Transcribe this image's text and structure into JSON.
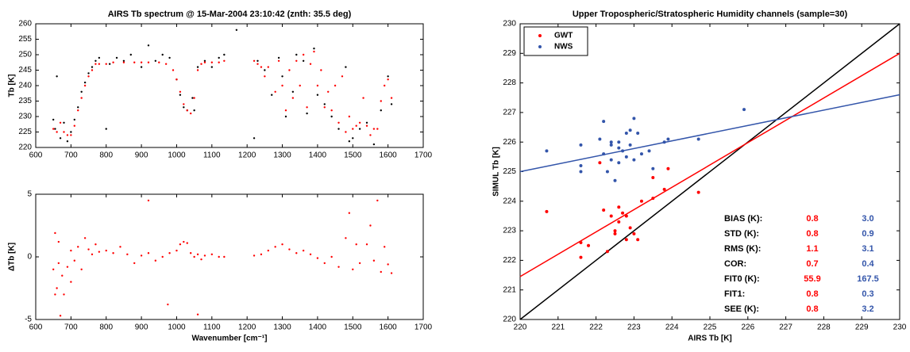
{
  "chart_data": [
    {
      "type": "scatter",
      "title": "AIRS Tb spectrum @ 15-Mar-2004 23:10:42 (znth: 35.5 deg)",
      "y_label": "Tb [K]",
      "xlim": [
        600,
        1700
      ],
      "xticks": [
        600,
        700,
        800,
        900,
        1000,
        1100,
        1200,
        1300,
        1400,
        1500,
        1600,
        1700
      ],
      "ylim": [
        220,
        260
      ],
      "yticks": [
        220,
        225,
        230,
        235,
        240,
        245,
        250,
        255,
        260
      ],
      "series": [
        {
          "color": "#000000",
          "x": [
            650,
            655,
            660,
            670,
            680,
            690,
            700,
            710,
            720,
            730,
            740,
            750,
            760,
            770,
            780,
            800,
            810,
            830,
            850,
            870,
            900,
            920,
            940,
            960,
            980,
            1000,
            1010,
            1020,
            1030,
            1045,
            1050,
            1060,
            1080,
            1100,
            1120,
            1135,
            1170,
            1220,
            1230,
            1250,
            1270,
            1290,
            1300,
            1310,
            1330,
            1340,
            1360,
            1370,
            1390,
            1400,
            1420,
            1440,
            1460,
            1480,
            1490,
            1500,
            1520,
            1540,
            1560,
            1580,
            1600,
            1610
          ],
          "values": [
            229,
            226,
            243,
            223,
            228,
            222,
            225,
            229,
            233,
            238,
            241,
            244,
            246,
            248,
            249,
            226,
            247,
            249,
            248,
            250,
            246,
            253,
            248,
            250,
            249,
            242,
            237,
            233,
            232,
            236,
            232,
            246,
            248,
            246,
            249,
            250,
            258,
            223,
            248,
            245,
            237,
            249,
            243,
            230,
            238,
            250,
            248,
            231,
            252,
            237,
            234,
            230,
            226,
            246,
            222,
            223,
            226,
            228,
            221,
            232,
            243,
            234
          ]
        },
        {
          "color": "#ff0000",
          "x": [
            650,
            660,
            670,
            680,
            690,
            700,
            710,
            720,
            730,
            740,
            750,
            760,
            770,
            780,
            800,
            820,
            850,
            880,
            900,
            920,
            950,
            970,
            990,
            1000,
            1010,
            1020,
            1030,
            1040,
            1050,
            1060,
            1070,
            1080,
            1100,
            1120,
            1135,
            1220,
            1230,
            1240,
            1250,
            1260,
            1280,
            1290,
            1300,
            1310,
            1320,
            1330,
            1340,
            1350,
            1360,
            1370,
            1380,
            1390,
            1400,
            1410,
            1420,
            1430,
            1440,
            1450,
            1460,
            1470,
            1480,
            1490,
            1500,
            1510,
            1520,
            1530,
            1540,
            1550,
            1560,
            1570,
            1580,
            1590,
            1600,
            1610
          ],
          "values": [
            226,
            225,
            228,
            225,
            224,
            224,
            227,
            232,
            236,
            240,
            243,
            245,
            247,
            247,
            247,
            247.5,
            247.5,
            247.5,
            247.5,
            247.5,
            247.5,
            247,
            245,
            242,
            238,
            234,
            232,
            231,
            236,
            245,
            247,
            247.5,
            247.5,
            247.5,
            248,
            248,
            247,
            246,
            243,
            246,
            238,
            248,
            240,
            232,
            245,
            236,
            248,
            240,
            250,
            233,
            247,
            251,
            240,
            245,
            233,
            238,
            232,
            240,
            228,
            243,
            225,
            230,
            226,
            227,
            228,
            236,
            227,
            224,
            226,
            226,
            235,
            240,
            242,
            236
          ]
        }
      ]
    },
    {
      "type": "scatter",
      "y_label": "ΔTb [K]",
      "x_label": "Wavenumber [cm⁻¹]",
      "xlim": [
        600,
        1700
      ],
      "xticks": [
        600,
        700,
        800,
        900,
        1000,
        1100,
        1200,
        1300,
        1400,
        1500,
        1600,
        1700
      ],
      "ylim": [
        -5,
        5
      ],
      "yticks": [
        -5,
        0,
        5
      ],
      "series": [
        {
          "color": "#ff0000",
          "x": [
            650,
            655,
            660,
            665,
            670,
            675,
            680,
            690,
            700,
            710,
            720,
            730,
            740,
            750,
            760,
            770,
            780,
            800,
            820,
            840,
            860,
            880,
            900,
            920,
            940,
            960,
            980,
            1000,
            1010,
            1020,
            1030,
            1040,
            1050,
            1060,
            1070,
            1080,
            1100,
            1120,
            1135,
            1220,
            1240,
            1260,
            1280,
            1300,
            1320,
            1340,
            1360,
            1380,
            1400,
            1420,
            1440,
            1460,
            1480,
            1490,
            1500,
            1510,
            1520,
            1540,
            1550,
            1560,
            1570,
            1580,
            1590,
            1600,
            1610,
            655,
            665,
            700,
            920,
            975,
            1060
          ],
          "values": [
            -1,
            1.9,
            -2.5,
            -0.5,
            -4.7,
            -1.5,
            -3,
            -0.8,
            0.5,
            -0.3,
            0.8,
            -1,
            1.5,
            0.6,
            0.2,
            1,
            0.4,
            0.5,
            0.3,
            0.8,
            0.2,
            -0.5,
            0.1,
            0.3,
            -0.3,
            0,
            0.3,
            0.5,
            1,
            1.2,
            1.1,
            0.3,
            0,
            0.2,
            -0.2,
            0.1,
            0.2,
            0,
            0,
            0.1,
            0.2,
            0.5,
            0.8,
            1,
            0.6,
            0.3,
            0.5,
            0.2,
            -0.1,
            -0.5,
            0,
            -0.8,
            1.5,
            3.5,
            -1,
            1,
            -0.5,
            1,
            2.5,
            -0.3,
            4.5,
            -1.2,
            0.8,
            -0.6,
            -1.3,
            -3,
            1.2,
            -2,
            4.5,
            -3.8,
            -4.6
          ]
        }
      ]
    },
    {
      "type": "scatter",
      "title": "Upper Tropospheric/Stratospheric Humidity channels (sample=30)",
      "x_label": "AIRS Tb [K]",
      "y_label": "SIMUL Tb [K]",
      "xlim": [
        220,
        230
      ],
      "xticks": [
        220,
        221,
        222,
        223,
        224,
        225,
        226,
        227,
        228,
        229,
        230
      ],
      "ylim": [
        220,
        230
      ],
      "yticks": [
        220,
        221,
        222,
        223,
        224,
        225,
        226,
        227,
        228,
        229,
        230
      ],
      "legend": "upper left",
      "series": [
        {
          "name": "GWT",
          "color": "#ff0000",
          "x": [
            220.7,
            221.6,
            221.6,
            221.8,
            222.1,
            222.2,
            222.3,
            222.4,
            222.5,
            222.6,
            222.6,
            222.7,
            222.8,
            222.9,
            223.0,
            223.1,
            223.2,
            223.5,
            223.5,
            223.8,
            223.9,
            224.7,
            222.5,
            222.8
          ],
          "values": [
            223.65,
            222.6,
            222.1,
            222.5,
            225.3,
            223.7,
            222.3,
            223.5,
            223.0,
            223.8,
            223.3,
            223.6,
            222.7,
            223.1,
            222.9,
            222.7,
            224.0,
            224.1,
            224.8,
            224.4,
            225.1,
            224.3,
            222.9,
            223.5
          ]
        },
        {
          "name": "NWS",
          "color": "#3355aa",
          "x": [
            220.7,
            221.6,
            221.6,
            221.6,
            222.1,
            222.2,
            222.2,
            222.3,
            222.4,
            222.4,
            222.5,
            222.6,
            222.6,
            222.7,
            222.8,
            222.8,
            222.9,
            223.0,
            223.0,
            223.1,
            223.2,
            223.4,
            223.5,
            223.8,
            223.9,
            224.7,
            225.9,
            222.6,
            222.9,
            222.4
          ],
          "values": [
            225.7,
            225.2,
            225.0,
            225.9,
            226.1,
            226.7,
            225.6,
            225.0,
            225.4,
            225.9,
            224.7,
            225.3,
            225.8,
            225.7,
            226.3,
            225.5,
            226.4,
            226.8,
            225.4,
            226.3,
            225.6,
            225.7,
            225.1,
            226.0,
            226.1,
            226.1,
            227.1,
            226.0,
            225.9,
            226.0
          ]
        }
      ],
      "lines": [
        {
          "color": "#000000",
          "x": [
            220,
            230
          ],
          "values": [
            220,
            230
          ]
        },
        {
          "color": "#ff0000",
          "x": [
            220,
            230
          ],
          "values": [
            221.45,
            229.0
          ]
        },
        {
          "color": "#3355aa",
          "x": [
            220,
            230
          ],
          "values": [
            225.0,
            227.6
          ]
        }
      ],
      "stats": {
        "rows": [
          [
            "BIAS (K):",
            "0.8",
            "3.0"
          ],
          [
            "STD (K):",
            "0.8",
            "0.9"
          ],
          [
            "RMS (K):",
            "1.1",
            "3.1"
          ],
          [
            "COR:",
            "0.7",
            "0.4"
          ],
          [
            "FIT0 (K):",
            "55.9",
            "167.5"
          ],
          [
            "FIT1:",
            "0.8",
            "0.3"
          ],
          [
            "SEE (K):",
            "0.8",
            "3.2"
          ]
        ]
      }
    }
  ]
}
